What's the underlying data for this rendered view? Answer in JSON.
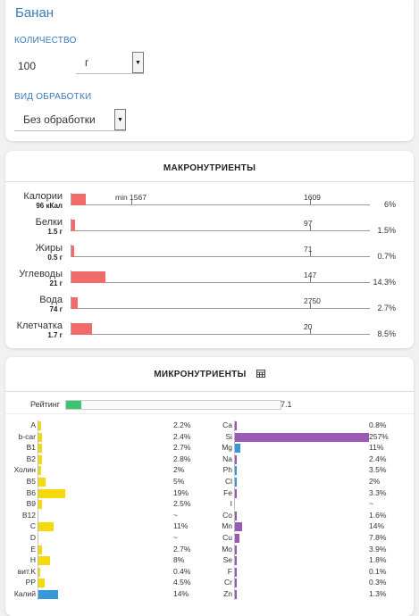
{
  "food": {
    "title": "Банан",
    "quantity_label": "КОЛИЧЕСТВО",
    "quantity_value": "100",
    "unit_value": "г",
    "processing_label": "ВИД ОБРАБОТКИ",
    "processing_value": "Без обработки"
  },
  "macro": {
    "title": "МАКРОНУТРИЕНТЫ",
    "min_label": "min 1567",
    "rows": [
      {
        "name": "Калории",
        "amount": "96 кКал",
        "norm": "1609",
        "pct": "6%",
        "value": 6
      },
      {
        "name": "Белки",
        "amount": "1.5 г",
        "norm": "97",
        "pct": "1.5%",
        "value": 1.5
      },
      {
        "name": "Жиры",
        "amount": "0.5 г",
        "norm": "71",
        "pct": "0.7%",
        "value": 0.7
      },
      {
        "name": "Углеводы",
        "amount": "21 г",
        "norm": "147",
        "pct": "14.3%",
        "value": 14.3
      },
      {
        "name": "Вода",
        "amount": "74 г",
        "norm": "2750",
        "pct": "2.7%",
        "value": 2.7
      },
      {
        "name": "Клетчатка",
        "amount": "1.7 г",
        "norm": "20",
        "pct": "8.5%",
        "value": 8.5
      }
    ]
  },
  "micro": {
    "title": "МИКРОНУТРИЕНТЫ",
    "rating_label": "Рейтинг",
    "rating_value": "7.1",
    "rating_level": 7.1,
    "vitamins": [
      {
        "name": "A",
        "pct": "2.2%",
        "value": 2.2
      },
      {
        "name": "b-car",
        "pct": "2.4%",
        "value": 2.4
      },
      {
        "name": "B1",
        "pct": "2.7%",
        "value": 2.7
      },
      {
        "name": "B2",
        "pct": "2.8%",
        "value": 2.8
      },
      {
        "name": "Холин",
        "pct": "2%",
        "value": 2
      },
      {
        "name": "B5",
        "pct": "5%",
        "value": 5
      },
      {
        "name": "B6",
        "pct": "19%",
        "value": 19
      },
      {
        "name": "B9",
        "pct": "2.5%",
        "value": 2.5
      },
      {
        "name": "B12",
        "pct": "~",
        "value": 0
      },
      {
        "name": "C",
        "pct": "11%",
        "value": 11
      },
      {
        "name": "D",
        "pct": "~",
        "value": 0
      },
      {
        "name": "E",
        "pct": "2.7%",
        "value": 2.7
      },
      {
        "name": "H",
        "pct": "8%",
        "value": 8
      },
      {
        "name": "вит.K",
        "pct": "0.4%",
        "value": 0.4
      },
      {
        "name": "PP",
        "pct": "4.5%",
        "value": 4.5
      },
      {
        "name": "Калий",
        "pct": "14%",
        "value": 14
      }
    ],
    "minerals": [
      {
        "name": "Ca",
        "pct": "0.8%",
        "value": 0.8
      },
      {
        "name": "Si",
        "pct": "257%",
        "value": 257
      },
      {
        "name": "Mg",
        "pct": "11%",
        "value": 11
      },
      {
        "name": "Na",
        "pct": "2.4%",
        "value": 2.4
      },
      {
        "name": "Ph",
        "pct": "3.5%",
        "value": 3.5
      },
      {
        "name": "Cl",
        "pct": "2%",
        "value": 2
      },
      {
        "name": "Fe",
        "pct": "3.3%",
        "value": 3.3
      },
      {
        "name": "I",
        "pct": "~",
        "value": 0
      },
      {
        "name": "Co",
        "pct": "1.6%",
        "value": 1.6
      },
      {
        "name": "Mn",
        "pct": "14%",
        "value": 14
      },
      {
        "name": "Cu",
        "pct": "7.8%",
        "value": 7.8
      },
      {
        "name": "Mo",
        "pct": "3.9%",
        "value": 3.9
      },
      {
        "name": "Se",
        "pct": "1.8%",
        "value": 1.8
      },
      {
        "name": "F",
        "pct": "0.1%",
        "value": 0.1
      },
      {
        "name": "Cr",
        "pct": "0.3%",
        "value": 0.3
      },
      {
        "name": "Zn",
        "pct": "1.3%",
        "value": 1.3
      }
    ]
  },
  "colors": {
    "accent": "#3c7ab8",
    "macro_bar": "#f26b6b",
    "vitamin_bar": "#f5d90a",
    "potassium_bar": "#3498db",
    "mineral_bar": "#9b59b6",
    "mineral_blue_bar": "#3498db",
    "rating_bar": "#3cc46e"
  },
  "icons": {
    "table": "table-grid-icon",
    "dropdown": "dropdown-arrow-icon"
  }
}
